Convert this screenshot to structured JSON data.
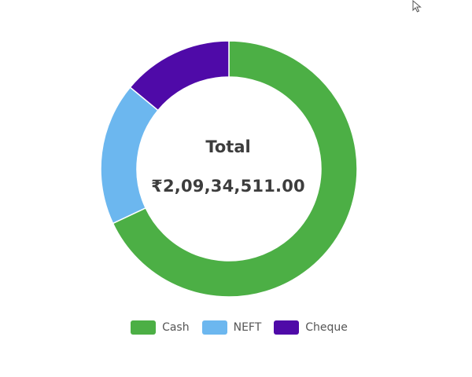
{
  "chart_data": {
    "type": "pie",
    "variant": "donut",
    "categories": [
      "Cash",
      "NEFT",
      "Cheque"
    ],
    "values": [
      68,
      18,
      14
    ],
    "colors": [
      "#4caf45",
      "#6cb7ef",
      "#4f0aa8"
    ],
    "legend": "bottom",
    "center": {
      "title": "Total",
      "value": "₹2,09,34,511.00"
    }
  },
  "icons": {
    "cursor": "mouse-pointer-icon"
  }
}
